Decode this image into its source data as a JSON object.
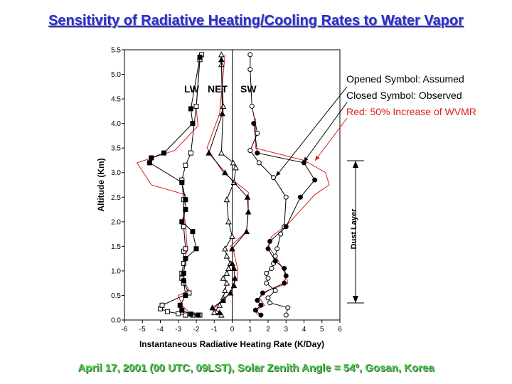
{
  "header": {
    "title": "Sensitivity of Radiative Heating/Cooling Rates to Water Vapor",
    "footer": "April 17, 2001 (00 UTC, 09LST), Solar Zenith Angle = 54º, Gosan, Korea"
  },
  "colors": {
    "title": "#2b2bd8",
    "footer": "#3fd43f",
    "red": "#d81e1e",
    "black": "#000000"
  },
  "chart_data": {
    "type": "line",
    "xlabel": "Instantaneous Radiative Heating Rate (K/Day)",
    "ylabel": "Altitude (Km)",
    "xlim": [
      -6,
      6
    ],
    "ylim": [
      0,
      5.5
    ],
    "xticks": [
      "-6",
      "-5",
      "-4",
      "-3",
      "-2",
      "-1",
      "0",
      "1",
      "2",
      "3",
      "4",
      "5",
      "6"
    ],
    "yticks": [
      "0.0",
      "0.5",
      "1.0",
      "1.5",
      "2.0",
      "2.5",
      "3.0",
      "3.5",
      "4.0",
      "4.5",
      "5.0",
      "5.5"
    ],
    "group_labels": [
      "LW",
      "NET",
      "SW"
    ],
    "annotations": {
      "opened": "Opened Symbol: Assumed",
      "closed": "Closed Symbol: Observed",
      "red": "Red: 50% Increase of WVMR"
    },
    "dust_layer": {
      "label": "Dust Layer",
      "bottom": 0.35,
      "top": 3.25
    },
    "series": [
      {
        "group": "LW",
        "filled": false,
        "marker": "square",
        "x": [
          -1.8,
          -2.2,
          -2.6,
          -3.0,
          -3.6,
          -4.0,
          -3.9,
          -2.4,
          -2.7,
          -2.8,
          -2.8,
          -2.7,
          -2.7,
          -2.6,
          -2.7,
          -2.7,
          -2.8,
          -2.6,
          -2.3,
          -2.0,
          -1.8,
          -1.7
        ],
        "y": [
          0.1,
          0.1,
          0.1,
          0.13,
          0.17,
          0.23,
          0.3,
          0.55,
          0.75,
          0.85,
          0.95,
          1.15,
          1.4,
          1.45,
          1.9,
          2.45,
          2.85,
          3.15,
          3.4,
          4.35,
          5.3,
          5.4
        ]
      },
      {
        "group": "LW",
        "filled": true,
        "marker": "square",
        "x": [
          -1.9,
          -2.3,
          -2.8,
          -2.9,
          -2.6,
          -2.7,
          -2.7,
          -2.6,
          -2.0,
          -2.2,
          -2.8,
          -2.6,
          -2.6,
          -2.8,
          -4.6,
          -4.5,
          -3.8,
          -2.2,
          -2.3,
          -1.8
        ],
        "y": [
          0.1,
          0.12,
          0.2,
          0.3,
          0.5,
          0.8,
          0.95,
          1.25,
          1.45,
          1.8,
          2.0,
          2.25,
          2.45,
          2.8,
          3.2,
          3.3,
          3.4,
          4.0,
          4.3,
          5.35
        ]
      },
      {
        "group": "NET",
        "filled": false,
        "marker": "triangle",
        "x": [
          -0.6,
          -1.0,
          -0.7,
          -0.5,
          -0.4,
          -0.3,
          -0.5,
          -0.3,
          -0.2,
          -0.1,
          -0.3,
          -0.4,
          0.0,
          -0.2,
          -0.3,
          0.1,
          0.2,
          0.05,
          -0.6,
          -0.5,
          -0.6,
          -0.6
        ],
        "y": [
          0.1,
          0.15,
          0.3,
          0.45,
          0.6,
          0.75,
          0.85,
          0.95,
          1.05,
          1.15,
          1.3,
          1.45,
          1.7,
          2.0,
          2.45,
          2.8,
          3.1,
          3.2,
          3.4,
          4.35,
          5.2,
          5.4
        ]
      },
      {
        "group": "NET",
        "filled": true,
        "marker": "triangle",
        "x": [
          -0.7,
          -1.1,
          -0.5,
          -0.1,
          0.1,
          0.15,
          0.1,
          0.0,
          0.0,
          0.8,
          0.9,
          0.85,
          -0.4,
          -1.3,
          -0.55,
          -0.6
        ],
        "y": [
          0.15,
          0.25,
          0.4,
          0.55,
          0.7,
          0.85,
          1.05,
          1.15,
          1.45,
          1.8,
          2.2,
          2.5,
          3.0,
          3.4,
          4.2,
          5.3
        ]
      },
      {
        "group": "SW",
        "filled": false,
        "marker": "circle",
        "x": [
          3.0,
          3.1,
          2.1,
          2.0,
          2.4,
          1.9,
          2.0,
          1.9,
          2.2,
          2.3,
          2.4,
          2.5,
          2.7,
          2.9,
          3.0,
          2.3,
          1.5,
          1.0,
          1.4,
          1.1,
          1.0,
          1.0
        ],
        "y": [
          0.1,
          0.25,
          0.35,
          0.45,
          0.6,
          0.75,
          0.85,
          0.95,
          1.05,
          1.15,
          1.3,
          1.45,
          1.75,
          1.9,
          2.5,
          2.9,
          3.2,
          3.45,
          3.8,
          4.35,
          5.1,
          5.4
        ]
      },
      {
        "group": "SW",
        "filled": true,
        "marker": "circle",
        "x": [
          1.6,
          1.3,
          1.6,
          1.4,
          1.7,
          2.9,
          3.0,
          2.9,
          2.4,
          2.0,
          2.1,
          3.0,
          3.8,
          4.6,
          4.0,
          1.4,
          1.2
        ],
        "y": [
          0.1,
          0.2,
          0.3,
          0.4,
          0.55,
          0.75,
          0.9,
          1.05,
          1.2,
          1.45,
          1.6,
          1.9,
          2.5,
          2.85,
          3.2,
          3.4,
          4.0
        ]
      },
      {
        "group": "LW",
        "filled": false,
        "marker": "none",
        "color": "red",
        "x": [
          -1.8,
          -2.3,
          -2.8,
          -3.0,
          -2.4,
          -2.7,
          -2.8,
          -2.7,
          -2.5,
          -2.6,
          -2.7,
          -2.6,
          -4.5,
          -5.3,
          -3.2,
          -1.9,
          -2.0,
          -1.8
        ],
        "y": [
          0.1,
          0.12,
          0.3,
          0.5,
          0.6,
          0.8,
          0.95,
          1.15,
          1.45,
          1.9,
          2.3,
          2.55,
          2.75,
          3.2,
          3.45,
          3.95,
          4.3,
          5.4
        ]
      },
      {
        "group": "NET",
        "filled": false,
        "marker": "none",
        "color": "red",
        "x": [
          -0.8,
          -1.1,
          -0.6,
          -0.1,
          0.0,
          0.3,
          0.3,
          0.2,
          0.05,
          -0.1,
          0.8,
          0.9,
          0.9,
          -0.5,
          -1.4,
          -0.7,
          -0.4
        ],
        "y": [
          0.1,
          0.2,
          0.4,
          0.55,
          0.7,
          0.85,
          1.05,
          1.2,
          1.45,
          1.5,
          1.8,
          2.3,
          2.6,
          3.0,
          3.5,
          4.2,
          5.4
        ]
      },
      {
        "group": "SW",
        "filled": false,
        "marker": "none",
        "color": "red",
        "x": [
          1.4,
          1.3,
          1.8,
          1.5,
          2.0,
          3.1,
          3.0,
          2.8,
          2.5,
          2.0,
          2.2,
          3.1,
          4.6,
          5.4,
          5.2,
          4.0,
          1.3,
          1.3
        ],
        "y": [
          0.1,
          0.2,
          0.3,
          0.45,
          0.6,
          0.75,
          0.9,
          1.05,
          1.25,
          1.5,
          1.7,
          1.95,
          2.55,
          2.75,
          3.0,
          3.25,
          3.5,
          4.1
        ]
      }
    ]
  }
}
